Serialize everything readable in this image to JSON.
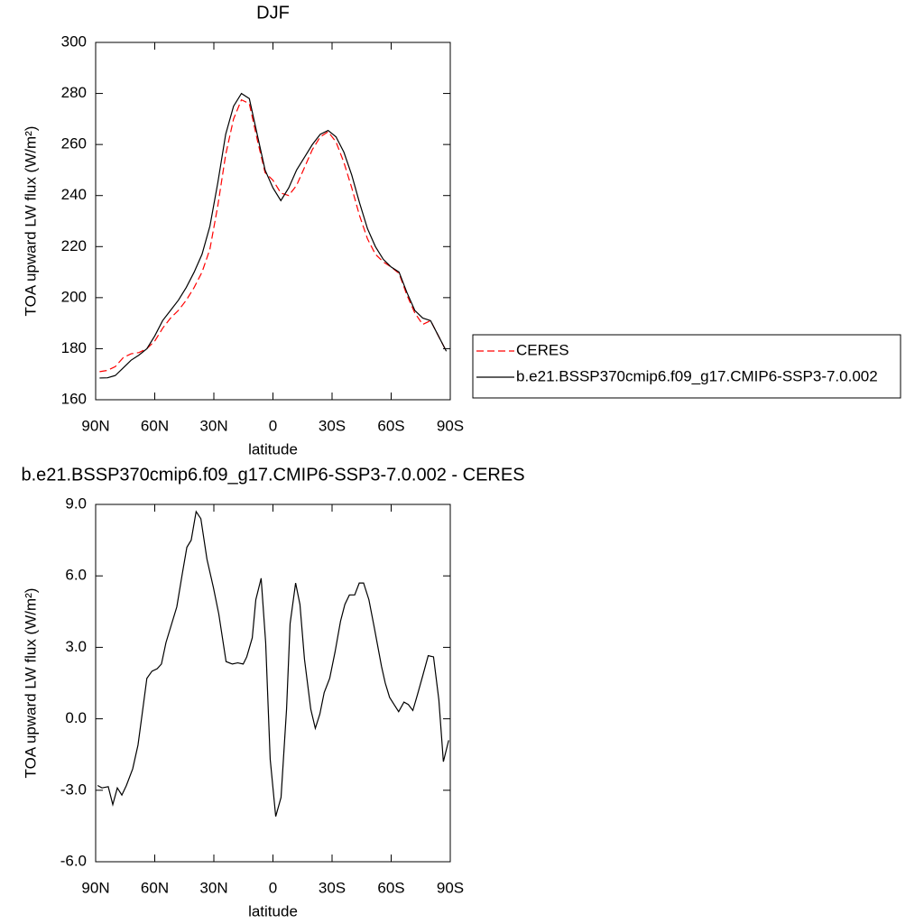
{
  "chart_data": [
    {
      "type": "line",
      "title": "DJF",
      "x_label": "latitude",
      "y_label": "TOA upward LW flux (W/m²)",
      "x": [
        88,
        84,
        80,
        76,
        72,
        68,
        64,
        60,
        56,
        52,
        48,
        44,
        40,
        36,
        32,
        28,
        24,
        20,
        16,
        12,
        8,
        4,
        0,
        -4,
        -8,
        -12,
        -16,
        -20,
        -24,
        -28,
        -32,
        -36,
        -40,
        -44,
        -48,
        -52,
        -56,
        -60,
        -64,
        -68,
        -72,
        -76,
        -80,
        -84,
        -88
      ],
      "series": [
        {
          "name": "CERES",
          "color": "#ff0000",
          "line_style": "dashed",
          "values": [
            171,
            171.5,
            173,
            176.5,
            178,
            178.5,
            180,
            183,
            188,
            192,
            195,
            199,
            204,
            210,
            219,
            236,
            256,
            270,
            277.5,
            276,
            262,
            249,
            246,
            241,
            240,
            244,
            251,
            258,
            263,
            265,
            261,
            253,
            243,
            232,
            223,
            217,
            214,
            212,
            209.5,
            201,
            194,
            189.5,
            191,
            185,
            179
          ]
        },
        {
          "name": "b.e21.BSSP370cmip6.f09_g17.CMIP6-SSP3-7.0.002",
          "color": "#000000",
          "line_style": "solid",
          "values": [
            168.5,
            168.6,
            169.5,
            172.5,
            175.5,
            177.5,
            180,
            185,
            191,
            195,
            199,
            204,
            210,
            217,
            228,
            245,
            264,
            275,
            280,
            278,
            264,
            250,
            243,
            238,
            243,
            250,
            255,
            260,
            264,
            265.5,
            263,
            257,
            248,
            237,
            227,
            220,
            215,
            212,
            210,
            202,
            195,
            192,
            191,
            185,
            179
          ]
        }
      ],
      "xlim": [
        90,
        -90
      ],
      "xticks": [
        {
          "value": 90,
          "label": "90N"
        },
        {
          "value": 60,
          "label": "60N"
        },
        {
          "value": 30,
          "label": "30N"
        },
        0,
        {
          "value": -30,
          "label": "30S"
        },
        {
          "value": -60,
          "label": "60S"
        },
        {
          "value": -90,
          "label": "90S"
        }
      ],
      "ylim": [
        160,
        300
      ],
      "yticks": [
        160,
        180,
        200,
        220,
        240,
        260,
        280,
        300
      ],
      "legend": true
    },
    {
      "type": "line",
      "title": "b.e21.BSSP370cmip6.f09_g17.CMIP6-SSP3-7.0.002 - CERES",
      "x_label": "latitude",
      "y_label": "TOA upward LW flux (W/m²)",
      "x": [
        89,
        86.8,
        83.6,
        81.3,
        79,
        76.7,
        74.4,
        71.2,
        68.5,
        66.4,
        64,
        61.4,
        58.8,
        56.6,
        54.3,
        48.8,
        46,
        43.7,
        41.5,
        39,
        36.6,
        33.5,
        30.2,
        27.5,
        23.8,
        20.6,
        17.9,
        15.1,
        13.3,
        10.5,
        8.7,
        6,
        3.7,
        1.4,
        -1.4,
        -4.1,
        -6.9,
        -8.7,
        -11.5,
        -13.7,
        -16,
        -19.2,
        -21.5,
        -23.8,
        -26,
        -28.8,
        -31.5,
        -34.3,
        -36.5,
        -38.8,
        -41.5,
        -43.8,
        -46,
        -48.7,
        -51.5,
        -55.1,
        -57,
        -59.2,
        -61.5,
        -63.8,
        -66.5,
        -68.7,
        -71,
        -73.3,
        -76,
        -78.8,
        -81.5,
        -84.2,
        -86.5,
        -89.2
      ],
      "series": [
        {
          "name": "b.e21.BSSP370cmip6.f09_g17.CMIP6-SSP3-7.0.002 - CERES",
          "color": "#000000",
          "line_style": "solid",
          "values": [
            -2.8,
            -2.9,
            -2.85,
            -3.6,
            -2.9,
            -3.2,
            -2.8,
            -2.1,
            -1.1,
            0.2,
            1.7,
            2.0,
            2.1,
            2.3,
            3.2,
            4.7,
            6.1,
            7.2,
            7.5,
            8.7,
            8.4,
            6.7,
            5.5,
            4.4,
            2.4,
            2.3,
            2.35,
            2.3,
            2.6,
            3.4,
            5.0,
            5.9,
            3.2,
            -1.7,
            -4.1,
            -3.3,
            0.4,
            4.0,
            5.7,
            4.8,
            2.5,
            0.4,
            -0.4,
            0.2,
            1.1,
            1.7,
            2.8,
            4.1,
            4.8,
            5.2,
            5.2,
            5.7,
            5.7,
            5.0,
            3.8,
            2.2,
            1.5,
            0.9,
            0.6,
            0.3,
            0.7,
            0.6,
            0.35,
            1.0,
            1.8,
            2.65,
            2.6,
            0.8,
            -1.8,
            -0.9
          ]
        }
      ],
      "xlim": [
        90,
        -90
      ],
      "xticks": [
        {
          "value": 90,
          "label": "90N"
        },
        {
          "value": 60,
          "label": "60N"
        },
        {
          "value": 30,
          "label": "30N"
        },
        0,
        {
          "value": -30,
          "label": "30S"
        },
        {
          "value": -60,
          "label": "60S"
        },
        {
          "value": -90,
          "label": "90S"
        }
      ],
      "ylim": [
        -6,
        9
      ],
      "yticks": [
        {
          "value": -6,
          "label": "-6.0"
        },
        {
          "value": -3,
          "label": "-3.0"
        },
        {
          "value": 0,
          "label": "0.0"
        },
        {
          "value": 3,
          "label": "3.0"
        },
        {
          "value": 6,
          "label": "6.0"
        },
        {
          "value": 9,
          "label": "9.0"
        }
      ],
      "legend": false
    }
  ]
}
